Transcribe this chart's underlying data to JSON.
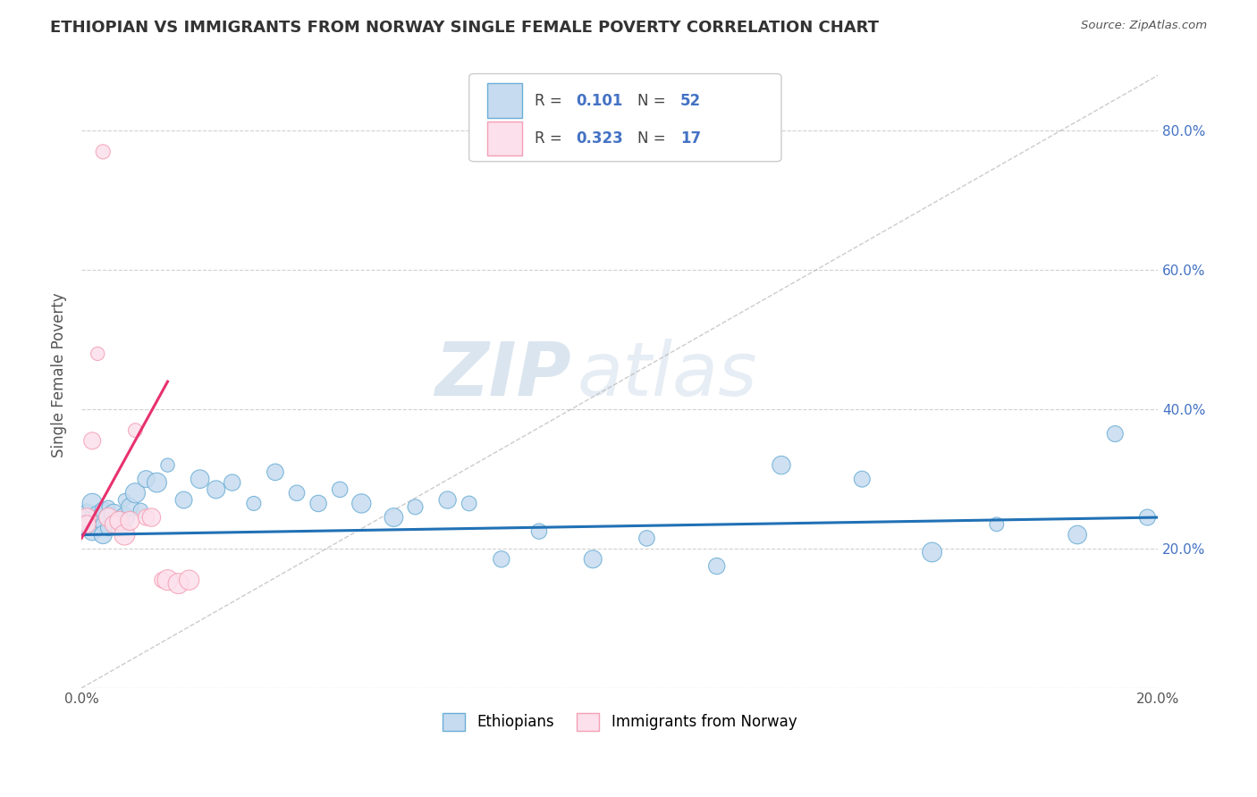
{
  "title": "ETHIOPIAN VS IMMIGRANTS FROM NORWAY SINGLE FEMALE POVERTY CORRELATION CHART",
  "source": "Source: ZipAtlas.com",
  "ylabel": "Single Female Poverty",
  "watermark_zip": "ZIP",
  "watermark_atlas": "atlas",
  "xlim": [
    0.0,
    0.2
  ],
  "ylim": [
    0.0,
    0.9
  ],
  "x_ticks": [
    0.0,
    0.05,
    0.1,
    0.15,
    0.2
  ],
  "x_tick_labels": [
    "0.0%",
    "",
    "",
    "",
    "20.0%"
  ],
  "y_ticks": [
    0.0,
    0.2,
    0.4,
    0.6,
    0.8
  ],
  "y_tick_labels_right": [
    "",
    "20.0%",
    "40.0%",
    "60.0%",
    "80.0%"
  ],
  "legend_sub1": "Ethiopians",
  "legend_sub2": "Immigrants from Norway",
  "blue_fill": "#c6dbef",
  "blue_edge": "#6baed6",
  "pink_fill": "#fce0eb",
  "pink_edge": "#f4a0b5",
  "line_blue": "#2171b5",
  "line_pink": "#e8316e",
  "title_color": "#333333",
  "grid_color": "#cccccc",
  "background_color": "#ffffff",
  "tick_color": "#4472c4",
  "ethiopian_x": [
    0.001,
    0.001,
    0.002,
    0.002,
    0.002,
    0.003,
    0.003,
    0.003,
    0.004,
    0.004,
    0.004,
    0.005,
    0.005,
    0.005,
    0.006,
    0.006,
    0.007,
    0.007,
    0.008,
    0.008,
    0.009,
    0.01,
    0.011,
    0.012,
    0.014,
    0.016,
    0.019,
    0.022,
    0.025,
    0.028,
    0.032,
    0.036,
    0.04,
    0.044,
    0.048,
    0.052,
    0.058,
    0.062,
    0.068,
    0.072,
    0.078,
    0.085,
    0.095,
    0.105,
    0.118,
    0.13,
    0.145,
    0.158,
    0.17,
    0.185,
    0.192,
    0.198
  ],
  "ethiopian_y": [
    0.255,
    0.235,
    0.245,
    0.225,
    0.265,
    0.23,
    0.25,
    0.24,
    0.235,
    0.255,
    0.22,
    0.245,
    0.23,
    0.26,
    0.235,
    0.25,
    0.24,
    0.23,
    0.245,
    0.27,
    0.26,
    0.28,
    0.255,
    0.3,
    0.295,
    0.32,
    0.27,
    0.3,
    0.285,
    0.295,
    0.265,
    0.31,
    0.28,
    0.265,
    0.285,
    0.265,
    0.245,
    0.26,
    0.27,
    0.265,
    0.185,
    0.225,
    0.185,
    0.215,
    0.175,
    0.32,
    0.3,
    0.195,
    0.235,
    0.22,
    0.365,
    0.245
  ],
  "norway_x": [
    0.001,
    0.001,
    0.002,
    0.003,
    0.004,
    0.005,
    0.006,
    0.007,
    0.008,
    0.009,
    0.01,
    0.012,
    0.013,
    0.015,
    0.016,
    0.018,
    0.02
  ],
  "norway_y": [
    0.245,
    0.235,
    0.355,
    0.48,
    0.77,
    0.245,
    0.235,
    0.24,
    0.22,
    0.24,
    0.37,
    0.245,
    0.245,
    0.155,
    0.155,
    0.15,
    0.155
  ]
}
